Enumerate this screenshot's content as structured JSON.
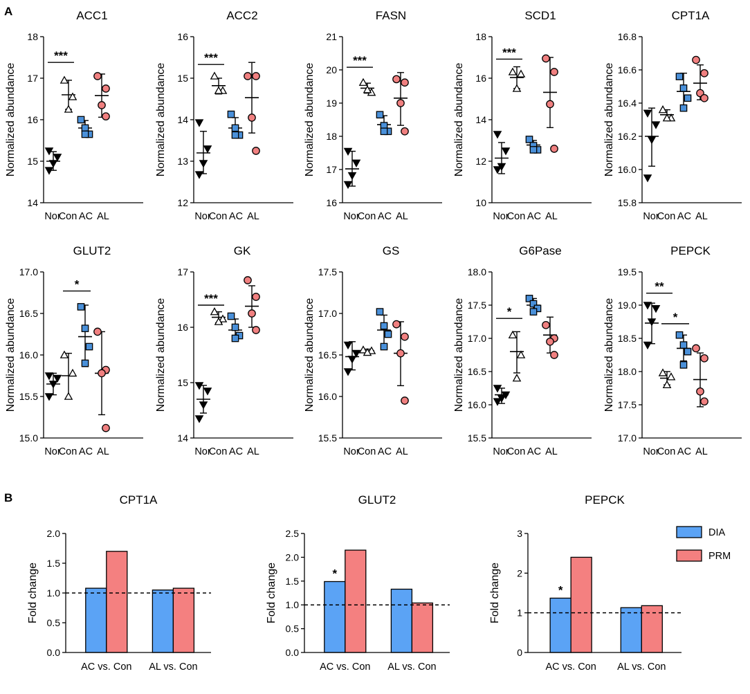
{
  "figure": {
    "panel_a_label": "A",
    "panel_b_label": "B",
    "groups": [
      "Nor",
      "Con",
      "AC",
      "AL"
    ],
    "group_colors": {
      "Nor": "#000000",
      "Con": "#ffffff",
      "AC": "#4a90d9",
      "AL": "#f08080"
    },
    "group_markers": {
      "Nor": "triangle-down",
      "Con": "triangle-up",
      "AC": "square",
      "AL": "circle"
    },
    "legend": [
      {
        "label": "DIA",
        "color": "#5ba3f5"
      },
      {
        "label": "PRM",
        "color": "#f48080"
      }
    ]
  },
  "chart_data": [
    {
      "type": "scatter",
      "title": "ACC1",
      "ylabel": "Normalized abundance",
      "ylim": [
        14,
        18
      ],
      "yticks": [
        14,
        15,
        16,
        17,
        18
      ],
      "tick_format": "0",
      "points": {
        "Nor": [
          15.25,
          15.1,
          14.95,
          14.78
        ],
        "Con": [
          16.95,
          16.55,
          16.25
        ],
        "AC": [
          16.0,
          15.8,
          15.65,
          15.65
        ],
        "AL": [
          17.05,
          16.75,
          16.35,
          16.08
        ]
      },
      "stats": {
        "Nor": [
          15.0,
          15.23,
          14.78
        ],
        "Con": [
          16.6,
          16.95,
          16.25
        ],
        "AC": [
          15.8,
          15.98,
          15.62
        ],
        "AL": [
          16.58,
          17.1,
          16.06
        ]
      },
      "significance": [
        {
          "from": "Nor",
          "to": "Con",
          "y": 17.38,
          "label": "***"
        }
      ]
    },
    {
      "type": "scatter",
      "title": "ACC2",
      "ylabel": "Normalized abundance",
      "ylim": [
        12,
        16
      ],
      "yticks": [
        12,
        13,
        14,
        15,
        16
      ],
      "tick_format": "0",
      "points": {
        "Nor": [
          13.93,
          13.3,
          12.95,
          12.68
        ],
        "Con": [
          15.05,
          14.7,
          14.7
        ],
        "AC": [
          14.13,
          13.8,
          13.63,
          13.63
        ],
        "AL": [
          15.05,
          15.05,
          14.05,
          13.25
        ]
      },
      "stats": {
        "Nor": [
          13.2,
          13.72,
          12.7
        ],
        "Con": [
          14.82,
          15.0,
          14.62
        ],
        "AC": [
          13.8,
          14.05,
          13.58
        ],
        "AL": [
          14.53,
          15.38,
          13.68
        ]
      },
      "significance": [
        {
          "from": "Nor",
          "to": "Con",
          "y": 15.33,
          "label": "***"
        }
      ]
    },
    {
      "type": "scatter",
      "title": "FASN",
      "ylabel": "Normalized abundance",
      "ylim": [
        16,
        21
      ],
      "yticks": [
        16,
        17,
        18,
        19,
        20,
        21
      ],
      "tick_format": "0",
      "points": {
        "Nor": [
          17.55,
          17.2,
          16.82,
          16.55
        ],
        "Con": [
          19.62,
          19.32,
          19.4
        ],
        "AC": [
          18.65,
          18.32,
          18.15,
          18.15
        ],
        "AL": [
          19.72,
          19.62,
          19.0,
          18.15
        ]
      },
      "stats": {
        "Nor": [
          17.02,
          17.55,
          16.5
        ],
        "Con": [
          19.45,
          19.6,
          19.3
        ],
        "AC": [
          18.35,
          18.62,
          18.1
        ],
        "AL": [
          19.15,
          19.92,
          18.33
        ]
      },
      "significance": [
        {
          "from": "Nor",
          "to": "Con",
          "y": 20.08,
          "label": "***"
        }
      ]
    },
    {
      "type": "scatter",
      "title": "SCD1",
      "ylabel": "Normalized abundance",
      "ylim": [
        10,
        18
      ],
      "yticks": [
        10,
        12,
        14,
        16,
        18
      ],
      "tick_format": "0",
      "points": {
        "Nor": [
          13.3,
          12.5,
          11.75,
          11.6
        ],
        "Con": [
          16.3,
          16.2,
          15.5
        ],
        "AC": [
          13.05,
          12.75,
          12.55,
          12.55
        ],
        "AL": [
          16.95,
          16.3,
          14.75,
          12.6
        ]
      },
      "stats": {
        "Nor": [
          12.15,
          12.9,
          11.4
        ],
        "Con": [
          16.03,
          16.55,
          15.5
        ],
        "AC": [
          12.78,
          13.0,
          12.55
        ],
        "AL": [
          15.32,
          17.0,
          13.62
        ]
      },
      "significance": [
        {
          "from": "Nor",
          "to": "Con",
          "y": 16.92,
          "label": "***"
        }
      ]
    },
    {
      "type": "scatter",
      "title": "CPT1A",
      "ylabel": "Normalized abundance",
      "ylim": [
        15.8,
        16.8
      ],
      "yticks": [
        15.8,
        16.0,
        16.2,
        16.4,
        16.6,
        16.8
      ],
      "tick_format": "1",
      "points": {
        "Nor": [
          16.34,
          16.27,
          16.18,
          15.95
        ],
        "Con": [
          16.36,
          16.31,
          16.31
        ],
        "AC": [
          16.56,
          16.49,
          16.43,
          16.37
        ],
        "AL": [
          16.66,
          16.58,
          16.46,
          16.43
        ]
      },
      "stats": {
        "Nor": [
          16.2,
          16.37,
          16.02
        ],
        "Con": [
          16.33,
          16.36,
          16.3
        ],
        "AC": [
          16.47,
          16.58,
          16.36
        ],
        "AL": [
          16.52,
          16.63,
          16.42
        ]
      },
      "significance": []
    },
    {
      "type": "scatter",
      "title": "GLUT2",
      "ylabel": "Normalized abundance",
      "ylim": [
        15.0,
        17.0
      ],
      "yticks": [
        15.0,
        15.5,
        16.0,
        16.5,
        17.0
      ],
      "tick_format": "1",
      "points": {
        "Nor": [
          15.75,
          15.72,
          15.65,
          15.5
        ],
        "Con": [
          16.0,
          15.78,
          15.5
        ],
        "AC": [
          16.58,
          16.32,
          16.1,
          15.9
        ],
        "AL": [
          16.28,
          15.82,
          15.78,
          15.12
        ]
      },
      "stats": {
        "Nor": [
          15.65,
          15.78,
          15.52
        ],
        "Con": [
          15.75,
          16.02,
          15.47
        ],
        "AC": [
          16.22,
          16.6,
          15.86
        ],
        "AL": [
          15.78,
          16.28,
          15.28
        ]
      },
      "significance": [
        {
          "from": "Con",
          "to": "AC",
          "y": 16.77,
          "label": "*"
        }
      ]
    },
    {
      "type": "scatter",
      "title": "GK",
      "ylabel": "Normalized abundance",
      "ylim": [
        14,
        17
      ],
      "yticks": [
        14,
        15,
        16,
        17
      ],
      "tick_format": "0",
      "points": {
        "Nor": [
          14.95,
          14.85,
          14.6,
          14.35
        ],
        "Con": [
          16.28,
          16.15,
          16.1
        ],
        "AC": [
          16.2,
          16.0,
          15.85,
          15.8
        ],
        "AL": [
          16.85,
          16.55,
          16.25,
          15.95
        ]
      },
      "stats": {
        "Nor": [
          14.7,
          14.95,
          14.45
        ],
        "Con": [
          16.18,
          16.28,
          16.08
        ],
        "AC": [
          15.95,
          16.15,
          15.75
        ],
        "AL": [
          16.38,
          16.75,
          16.0
        ]
      },
      "significance": [
        {
          "from": "Nor",
          "to": "Con",
          "y": 16.4,
          "label": "***"
        }
      ]
    },
    {
      "type": "scatter",
      "title": "GS",
      "ylabel": "Normalized abundance",
      "ylim": [
        15.5,
        17.5
      ],
      "yticks": [
        15.5,
        16.0,
        16.5,
        17.0,
        17.5
      ],
      "tick_format": "1",
      "points": {
        "Nor": [
          16.62,
          16.52,
          16.45,
          16.3
        ],
        "Con": [
          16.56,
          16.55,
          16.53
        ],
        "AC": [
          17.02,
          16.85,
          16.75,
          16.6
        ],
        "AL": [
          16.87,
          16.72,
          16.52,
          15.95
        ]
      },
      "stats": {
        "Nor": [
          16.48,
          16.66,
          16.32
        ],
        "Con": [
          16.55,
          16.57,
          16.53
        ],
        "AC": [
          16.8,
          16.98,
          16.62
        ],
        "AL": [
          16.52,
          16.9,
          16.13
        ]
      },
      "significance": []
    },
    {
      "type": "scatter",
      "title": "G6Pase",
      "ylabel": "Normalized abundance",
      "ylim": [
        15.5,
        18.0
      ],
      "yticks": [
        15.5,
        16.0,
        16.5,
        17.0,
        17.5,
        18.0
      ],
      "tick_format": "1",
      "points": {
        "Nor": [
          16.25,
          16.15,
          16.1,
          16.05
        ],
        "Con": [
          17.05,
          16.75,
          16.4
        ],
        "AC": [
          17.6,
          17.52,
          17.45,
          17.4
        ],
        "AL": [
          17.2,
          17.0,
          16.95,
          16.75
        ]
      },
      "stats": {
        "Nor": [
          16.15,
          16.25,
          16.02
        ],
        "Con": [
          16.8,
          17.1,
          16.48
        ],
        "AC": [
          17.5,
          17.6,
          17.4
        ],
        "AL": [
          17.05,
          17.32,
          16.78
        ]
      },
      "significance": [
        {
          "from": "Nor",
          "to": "Con",
          "y": 17.3,
          "label": "*"
        }
      ]
    },
    {
      "type": "scatter",
      "title": "PEPCK",
      "ylabel": "Normalized abundance",
      "ylim": [
        17.0,
        19.5
      ],
      "yticks": [
        17.0,
        17.5,
        18.0,
        18.5,
        19.0,
        19.5
      ],
      "tick_format": "1",
      "points": {
        "Nor": [
          19.0,
          18.95,
          18.75,
          18.4
        ],
        "Con": [
          17.98,
          17.92,
          17.8
        ],
        "AC": [
          18.55,
          18.4,
          18.3,
          18.1
        ],
        "AL": [
          18.35,
          18.2,
          17.7,
          17.55
        ]
      },
      "stats": {
        "Nor": [
          18.73,
          19.03,
          18.42
        ],
        "Con": [
          17.9,
          18.0,
          17.8
        ],
        "AC": [
          18.35,
          18.55,
          18.16
        ],
        "AL": [
          17.88,
          18.28,
          17.47
        ]
      },
      "significance": [
        {
          "from": "Nor",
          "to": "Con",
          "y": 19.18,
          "label": "**"
        },
        {
          "from": "Con",
          "to": "AC",
          "y": 18.72,
          "label": "*"
        }
      ]
    },
    {
      "type": "bar",
      "title": "CPT1A",
      "ylabel": "Fold change",
      "ylim": [
        0,
        2.0
      ],
      "yticks": [
        0.0,
        0.5,
        1.0,
        1.5,
        2.0
      ],
      "tick_format": "1",
      "categories": [
        "AC vs. Con",
        "AL vs. Con"
      ],
      "series": [
        {
          "name": "DIA",
          "values": [
            1.08,
            1.05
          ]
        },
        {
          "name": "PRM",
          "values": [
            1.7,
            1.08
          ]
        }
      ],
      "reference_line": 1.0,
      "annotations": []
    },
    {
      "type": "bar",
      "title": "GLUT2",
      "ylabel": "Fold change",
      "ylim": [
        0,
        2.5
      ],
      "yticks": [
        0.0,
        0.5,
        1.0,
        1.5,
        2.0,
        2.5
      ],
      "tick_format": "1",
      "categories": [
        "AC vs. Con",
        "AL vs. Con"
      ],
      "series": [
        {
          "name": "DIA",
          "values": [
            1.49,
            1.33
          ]
        },
        {
          "name": "PRM",
          "values": [
            2.15,
            1.04
          ]
        }
      ],
      "reference_line": 1.0,
      "annotations": [
        {
          "category": 0,
          "series": 0,
          "label": "*"
        }
      ]
    },
    {
      "type": "bar",
      "title": "PEPCK",
      "ylabel": "Fold change",
      "ylim": [
        0,
        3
      ],
      "yticks": [
        0,
        1,
        2,
        3
      ],
      "tick_format": "0",
      "categories": [
        "AC vs. Con",
        "AL vs. Con"
      ],
      "series": [
        {
          "name": "DIA",
          "values": [
            1.37,
            1.13
          ]
        },
        {
          "name": "PRM",
          "values": [
            2.4,
            1.18
          ]
        }
      ],
      "reference_line": 1.0,
      "annotations": [
        {
          "category": 0,
          "series": 0,
          "label": "*"
        }
      ]
    }
  ]
}
